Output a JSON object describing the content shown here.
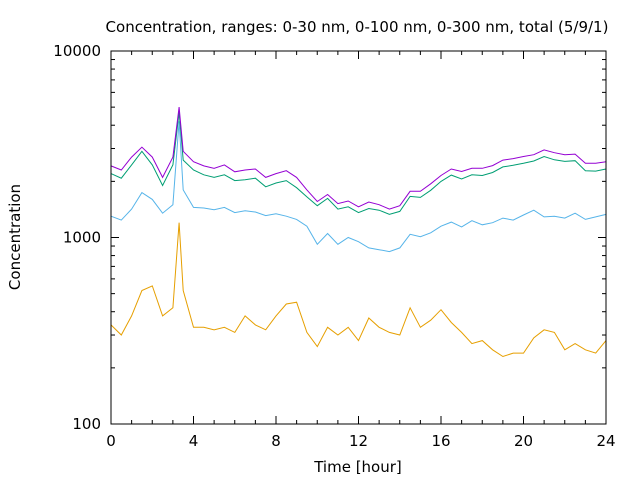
{
  "chart_data": {
    "type": "line",
    "title": "Concentration, ranges: 0-30 nm, 0-100 nm, 0-300 nm, total (5/9/1)",
    "xlabel": "Time [hour]",
    "ylabel": "Concentration",
    "xlim": [
      0,
      24
    ],
    "ylim": [
      100,
      10000
    ],
    "yscale": "log",
    "grid": false,
    "legend": "none",
    "x_ticks": [
      "0",
      "4",
      "8",
      "12",
      "16",
      "20",
      "24"
    ],
    "y_ticks": [
      "100",
      "1000",
      "10000"
    ],
    "x": [
      0,
      0.5,
      1,
      1.5,
      2,
      2.5,
      3,
      3.3,
      3.5,
      4,
      4.5,
      5,
      5.5,
      6,
      6.5,
      7,
      7.5,
      8,
      8.5,
      9,
      9.5,
      10,
      10.5,
      11,
      11.5,
      12,
      12.5,
      13,
      13.5,
      14,
      14.5,
      15,
      15.5,
      16,
      16.5,
      17,
      17.5,
      18,
      18.5,
      19,
      19.5,
      20,
      20.5,
      21,
      21.5,
      22,
      22.5,
      23,
      23.5,
      24
    ],
    "series": [
      {
        "color": "#e69f00",
        "values": [
          340,
          300,
          380,
          520,
          550,
          380,
          420,
          1200,
          520,
          330,
          330,
          320,
          330,
          310,
          380,
          340,
          320,
          380,
          440,
          450,
          310,
          260,
          330,
          300,
          330,
          280,
          370,
          330,
          310,
          300,
          420,
          330,
          360,
          410,
          350,
          310,
          270,
          280,
          250,
          230,
          240,
          240,
          290,
          320,
          310,
          250,
          270,
          250,
          240,
          280
        ]
      },
      {
        "color": "#56b4e9",
        "values": [
          1300,
          1240,
          1420,
          1740,
          1600,
          1350,
          1500,
          4200,
          1800,
          1450,
          1440,
          1410,
          1450,
          1360,
          1390,
          1370,
          1310,
          1340,
          1300,
          1250,
          1150,
          920,
          1050,
          920,
          1000,
          950,
          880,
          860,
          840,
          880,
          1040,
          1010,
          1060,
          1150,
          1210,
          1140,
          1230,
          1170,
          1200,
          1270,
          1240,
          1320,
          1400,
          1290,
          1300,
          1270,
          1350,
          1250,
          1290,
          1330
        ]
      },
      {
        "color": "#009e73",
        "values": [
          2200,
          2080,
          2450,
          2900,
          2450,
          1900,
          2450,
          4700,
          2600,
          2300,
          2170,
          2100,
          2170,
          2020,
          2040,
          2080,
          1870,
          1960,
          2020,
          1850,
          1650,
          1480,
          1620,
          1420,
          1460,
          1360,
          1430,
          1400,
          1330,
          1380,
          1660,
          1640,
          1790,
          2000,
          2160,
          2060,
          2170,
          2150,
          2230,
          2390,
          2440,
          2500,
          2570,
          2720,
          2610,
          2560,
          2580,
          2280,
          2270,
          2330
        ]
      },
      {
        "color": "#9400d3",
        "values": [
          2420,
          2300,
          2700,
          3050,
          2700,
          2100,
          2700,
          5000,
          2900,
          2550,
          2420,
          2350,
          2450,
          2250,
          2300,
          2330,
          2100,
          2200,
          2280,
          2100,
          1800,
          1560,
          1700,
          1520,
          1570,
          1460,
          1550,
          1500,
          1420,
          1480,
          1770,
          1770,
          1940,
          2150,
          2330,
          2260,
          2350,
          2350,
          2430,
          2600,
          2650,
          2720,
          2780,
          2950,
          2850,
          2780,
          2800,
          2500,
          2500,
          2550
        ]
      }
    ]
  }
}
